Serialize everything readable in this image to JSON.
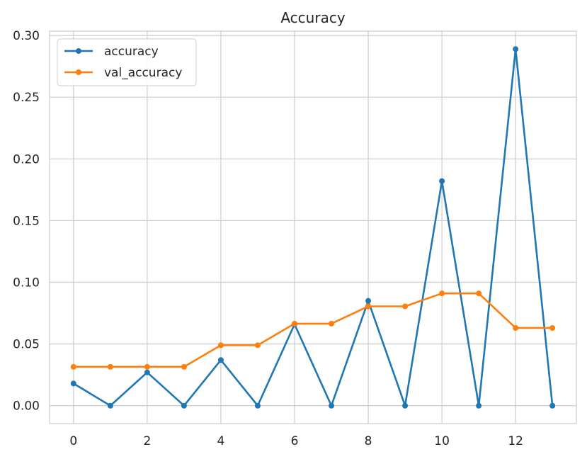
{
  "chart_data": {
    "type": "line",
    "title": "Accuracy",
    "xlabel": "",
    "ylabel": "",
    "x": [
      0,
      1,
      2,
      3,
      4,
      5,
      6,
      7,
      8,
      9,
      10,
      11,
      12,
      13
    ],
    "xlim": [
      -0.65,
      13.65
    ],
    "ylim": [
      -0.0145,
      0.3035
    ],
    "xticks": [
      0,
      2,
      4,
      6,
      8,
      10,
      12
    ],
    "xtick_labels": [
      "0",
      "2",
      "4",
      "6",
      "8",
      "10",
      "12"
    ],
    "yticks": [
      0.0,
      0.05,
      0.1,
      0.15,
      0.2,
      0.25,
      0.3
    ],
    "ytick_labels": [
      "0.00",
      "0.05",
      "0.10",
      "0.15",
      "0.20",
      "0.25",
      "0.30"
    ],
    "grid": true,
    "legend_position": "top-left",
    "series": [
      {
        "name": "accuracy",
        "color": "#1f77b4",
        "marker": "circle",
        "values": [
          0.018,
          0.0,
          0.027,
          0.0,
          0.037,
          0.0,
          0.066,
          0.0,
          0.085,
          0.0,
          0.182,
          0.0,
          0.289,
          0.0
        ]
      },
      {
        "name": "val_accuracy",
        "color": "#ff7f0e",
        "marker": "circle",
        "values": [
          0.0315,
          0.0315,
          0.0315,
          0.0315,
          0.049,
          0.049,
          0.0665,
          0.0665,
          0.0805,
          0.0805,
          0.091,
          0.091,
          0.063,
          0.063
        ]
      }
    ]
  }
}
